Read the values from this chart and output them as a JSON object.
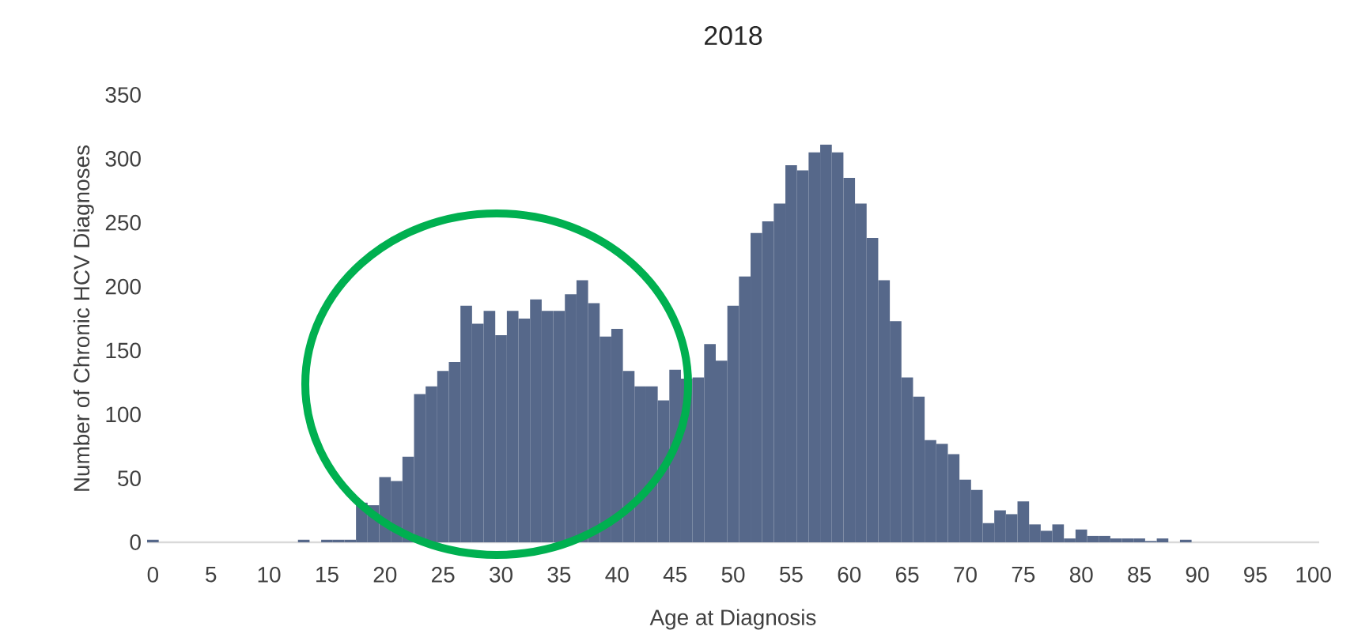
{
  "chart_data": {
    "type": "histogram",
    "title": "2018",
    "xlabel": "Age at Diagnosis",
    "ylabel": "Number of Chronic HCV Diagnoses",
    "color": "#56688a",
    "bins": [
      -0.5,
      0.5,
      1.5,
      2.5,
      3.5,
      4.5,
      5.5,
      6.5,
      7.5,
      8.5,
      9.5,
      10.5,
      11.5,
      12.5,
      13.5,
      14.5,
      15.5,
      16.5,
      17.5,
      18.5,
      19.5,
      20.5,
      21.5,
      22.5,
      23.5,
      24.5,
      25.5,
      26.5,
      27.5,
      28.5,
      29.5,
      30.5,
      31.5,
      32.5,
      33.5,
      34.5,
      35.5,
      36.5,
      37.5,
      38.5,
      39.5,
      40.5,
      41.5,
      42.5,
      43.5,
      44.5,
      45.5,
      46.5,
      47.5,
      48.5,
      49.5,
      50.5,
      51.5,
      52.5,
      53.5,
      54.5,
      55.5,
      56.5,
      57.5,
      58.5,
      59.5,
      60.5,
      61.5,
      62.5,
      63.5,
      64.5,
      65.5,
      66.5,
      67.5,
      68.5,
      69.5,
      70.5,
      71.5,
      72.5,
      73.5,
      74.5,
      75.5,
      76.5,
      77.5,
      78.5,
      79.5,
      80.5,
      81.5,
      82.5,
      83.5,
      84.5,
      85.5,
      86.5,
      87.5,
      88.5,
      89.5,
      90.5,
      91.5,
      92.5,
      93.5,
      94.5,
      95.5,
      96.5,
      97.5,
      98.5,
      99.5,
      100.5
    ],
    "values": [
      2,
      0,
      0,
      0,
      0,
      0,
      0,
      0,
      0,
      0,
      0,
      0,
      0,
      2,
      0,
      2,
      2,
      2,
      31,
      29,
      51,
      48,
      67,
      116,
      122,
      134,
      141,
      185,
      171,
      181,
      162,
      181,
      175,
      190,
      181,
      181,
      194,
      205,
      187,
      161,
      167,
      134,
      122,
      122,
      111,
      135,
      128,
      129,
      155,
      142,
      185,
      208,
      242,
      251,
      265,
      295,
      291,
      305,
      311,
      305,
      285,
      265,
      238,
      205,
      173,
      129,
      114,
      80,
      77,
      69,
      49,
      41,
      15,
      25,
      22,
      32,
      14,
      9,
      14,
      3,
      10,
      5,
      5,
      3,
      3,
      3,
      1,
      3,
      0,
      2,
      0,
      0,
      0,
      0,
      0,
      0,
      0,
      0,
      0,
      0,
      0
    ],
    "xlim": [
      -0.5,
      100.5
    ],
    "xticks": [
      0,
      5,
      10,
      15,
      20,
      25,
      30,
      35,
      40,
      45,
      50,
      55,
      60,
      65,
      70,
      75,
      80,
      85,
      90,
      95,
      100
    ],
    "ylim": [
      0,
      350
    ],
    "yticks": [
      0,
      50,
      100,
      150,
      200,
      250,
      300,
      350
    ]
  }
}
